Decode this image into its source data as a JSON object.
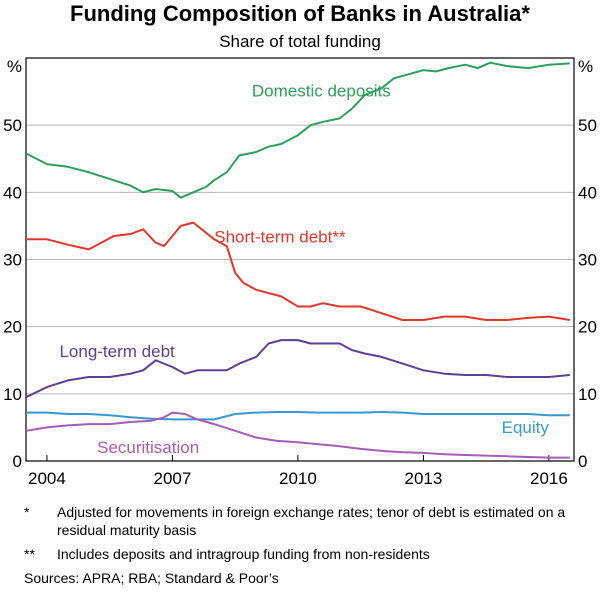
{
  "chart_data": {
    "type": "line",
    "title": "Funding Composition of Banks in Australia*",
    "subtitle": "Share of total funding",
    "ylabel": "%",
    "ylim": [
      0,
      60
    ],
    "yticks": [
      0,
      10,
      20,
      30,
      40,
      50
    ],
    "xlim": [
      2003.5,
      2016.6
    ],
    "xticks": [
      2004,
      2007,
      2010,
      2013,
      2016
    ],
    "grid": true,
    "series": [
      {
        "name": "Domestic deposits",
        "color": "#2ca05a",
        "x": [
          2003.5,
          2004.0,
          2004.5,
          2005.0,
          2005.5,
          2006.0,
          2006.3,
          2006.6,
          2007.0,
          2007.2,
          2007.5,
          2007.8,
          2008.0,
          2008.3,
          2008.6,
          2009.0,
          2009.3,
          2009.6,
          2010.0,
          2010.3,
          2010.6,
          2011.0,
          2011.3,
          2011.6,
          2012.0,
          2012.3,
          2012.6,
          2013.0,
          2013.3,
          2013.6,
          2014.0,
          2014.3,
          2014.6,
          2015.0,
          2015.5,
          2016.0,
          2016.5
        ],
        "values": [
          45.8,
          44.2,
          43.8,
          43.0,
          42.0,
          41.0,
          40.0,
          40.5,
          40.2,
          39.2,
          40.0,
          40.8,
          41.8,
          43.0,
          45.5,
          46.0,
          46.8,
          47.2,
          48.5,
          50.0,
          50.5,
          51.0,
          52.5,
          54.5,
          55.5,
          57.0,
          57.5,
          58.2,
          58.0,
          58.5,
          59.0,
          58.5,
          59.3,
          58.8,
          58.5,
          59.0,
          59.2
        ]
      },
      {
        "name": "Short-term debt**",
        "color": "#e4362c",
        "x": [
          2003.5,
          2004.0,
          2004.5,
          2005.0,
          2005.3,
          2005.6,
          2006.0,
          2006.3,
          2006.6,
          2006.8,
          2007.0,
          2007.2,
          2007.5,
          2007.8,
          2008.0,
          2008.3,
          2008.5,
          2008.7,
          2009.0,
          2009.3,
          2009.6,
          2010.0,
          2010.3,
          2010.6,
          2011.0,
          2011.5,
          2012.0,
          2012.5,
          2013.0,
          2013.5,
          2014.0,
          2014.5,
          2015.0,
          2015.5,
          2016.0,
          2016.5
        ],
        "values": [
          33.0,
          33.0,
          32.2,
          31.5,
          32.5,
          33.5,
          33.8,
          34.5,
          32.5,
          32.0,
          33.5,
          35.0,
          35.5,
          34.0,
          33.0,
          32.0,
          28.0,
          26.5,
          25.5,
          25.0,
          24.5,
          23.0,
          23.0,
          23.5,
          23.0,
          23.0,
          22.0,
          21.0,
          21.0,
          21.5,
          21.5,
          21.0,
          21.0,
          21.3,
          21.5,
          21.0
        ]
      },
      {
        "name": "Long-term debt",
        "color": "#5e3e96",
        "x": [
          2003.5,
          2004.0,
          2004.5,
          2005.0,
          2005.5,
          2006.0,
          2006.3,
          2006.6,
          2007.0,
          2007.3,
          2007.6,
          2008.0,
          2008.3,
          2008.6,
          2009.0,
          2009.3,
          2009.6,
          2010.0,
          2010.3,
          2010.6,
          2011.0,
          2011.3,
          2011.6,
          2012.0,
          2012.5,
          2013.0,
          2013.5,
          2014.0,
          2014.5,
          2015.0,
          2015.5,
          2016.0,
          2016.5
        ],
        "values": [
          9.5,
          11.0,
          12.0,
          12.5,
          12.5,
          13.0,
          13.5,
          15.0,
          14.0,
          13.0,
          13.5,
          13.5,
          13.5,
          14.5,
          15.5,
          17.5,
          18.0,
          18.0,
          17.5,
          17.5,
          17.5,
          16.5,
          16.0,
          15.5,
          14.5,
          13.5,
          13.0,
          12.8,
          12.8,
          12.5,
          12.5,
          12.5,
          12.8
        ]
      },
      {
        "name": "Equity",
        "color": "#3a98d1",
        "x": [
          2003.5,
          2004.0,
          2004.5,
          2005.0,
          2005.5,
          2006.0,
          2006.5,
          2007.0,
          2007.5,
          2008.0,
          2008.5,
          2009.0,
          2009.5,
          2010.0,
          2010.5,
          2011.0,
          2011.5,
          2012.0,
          2012.5,
          2013.0,
          2013.5,
          2014.0,
          2014.5,
          2015.0,
          2015.5,
          2016.0,
          2016.5
        ],
        "values": [
          7.2,
          7.2,
          7.0,
          7.0,
          6.8,
          6.5,
          6.3,
          6.2,
          6.2,
          6.2,
          7.0,
          7.2,
          7.3,
          7.3,
          7.2,
          7.2,
          7.2,
          7.3,
          7.2,
          7.0,
          7.0,
          7.0,
          7.0,
          7.0,
          7.0,
          6.8,
          6.8
        ]
      },
      {
        "name": "Securitisation",
        "color": "#a65cb8",
        "x": [
          2003.5,
          2004.0,
          2004.5,
          2005.0,
          2005.5,
          2006.0,
          2006.5,
          2006.8,
          2007.0,
          2007.3,
          2007.6,
          2008.0,
          2008.5,
          2009.0,
          2009.5,
          2010.0,
          2010.5,
          2011.0,
          2011.5,
          2012.0,
          2012.5,
          2013.0,
          2013.5,
          2014.0,
          2014.5,
          2015.0,
          2015.5,
          2016.0,
          2016.5
        ],
        "values": [
          4.5,
          5.0,
          5.3,
          5.5,
          5.5,
          5.8,
          6.0,
          6.5,
          7.2,
          7.0,
          6.2,
          5.5,
          4.5,
          3.5,
          3.0,
          2.8,
          2.5,
          2.2,
          1.8,
          1.5,
          1.3,
          1.2,
          1.0,
          0.9,
          0.8,
          0.7,
          0.6,
          0.5,
          0.5
        ]
      }
    ]
  },
  "footnotes": [
    {
      "mark": "*",
      "text": "Adjusted for movements in foreign exchange rates; tenor of debt is estimated on a residual maturity basis"
    },
    {
      "mark": "**",
      "text": "Includes deposits and intragroup funding from non-residents"
    }
  ],
  "sources": "Sources:   APRA; RBA; Standard & Poor’s"
}
